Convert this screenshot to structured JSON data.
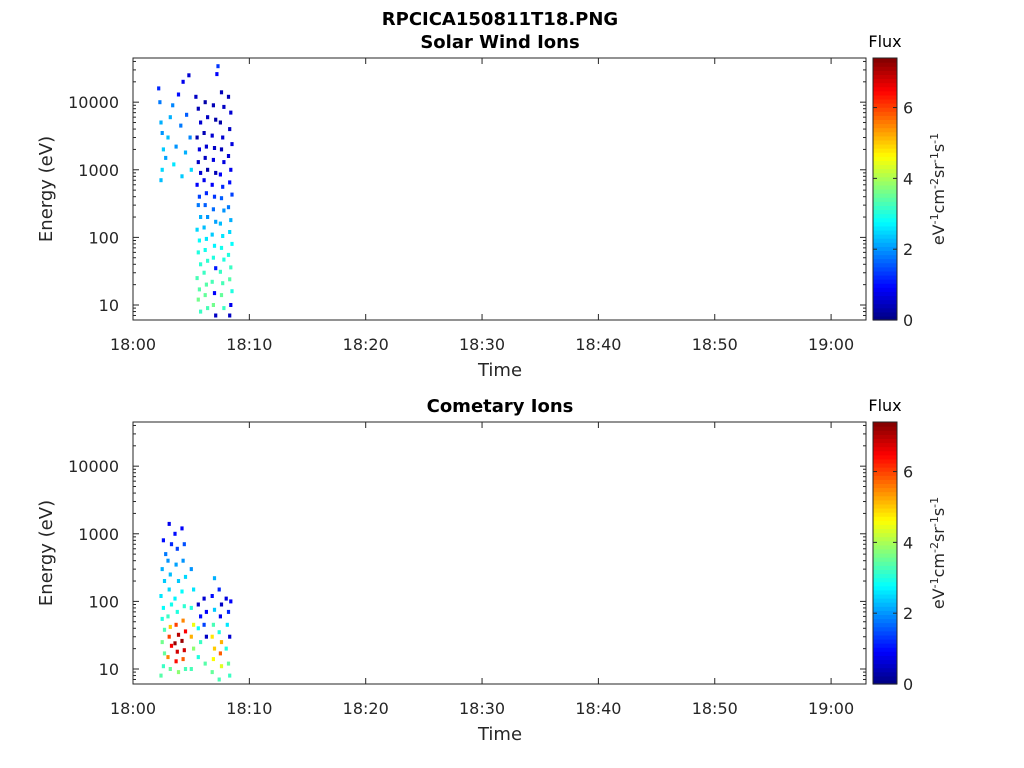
{
  "figure_title": "RPCICA150811T18.PNG",
  "chart_data": [
    {
      "type": "heatmap",
      "title": "Solar Wind Ions",
      "xlabel": "Time",
      "ylabel": "Energy (eV)",
      "x_ticks": [
        "18:00",
        "18:10",
        "18:20",
        "18:30",
        "18:40",
        "18:50",
        "19:00"
      ],
      "xlim_minutes": [
        0,
        63
      ],
      "y_ticks": [
        "10",
        "100",
        "1000",
        "10000"
      ],
      "ylim": [
        6,
        45000
      ],
      "y_scale": "log",
      "colorbar": {
        "title": "Flux",
        "label": "eV-1cm-2sr-1s-1",
        "ticks": [
          "0",
          "2",
          "4",
          "6"
        ],
        "range": [
          0,
          7.4
        ]
      },
      "cells": [
        [
          2.2,
          16000,
          1.2
        ],
        [
          2.3,
          10000,
          1.8
        ],
        [
          2.4,
          5000,
          2.2
        ],
        [
          2.5,
          3500,
          2.0
        ],
        [
          2.6,
          2000,
          2.4
        ],
        [
          2.5,
          1000,
          2.5
        ],
        [
          2.4,
          700,
          2.3
        ],
        [
          2.8,
          1500,
          2.1
        ],
        [
          3.0,
          3000,
          2.3
        ],
        [
          3.2,
          6000,
          2.2
        ],
        [
          3.4,
          9000,
          1.9
        ],
        [
          3.5,
          1200,
          2.6
        ],
        [
          3.7,
          2200,
          2.0
        ],
        [
          3.9,
          13000,
          1.0
        ],
        [
          4.1,
          4500,
          1.8
        ],
        [
          4.2,
          800,
          2.4
        ],
        [
          4.3,
          20000,
          0.8
        ],
        [
          4.5,
          1800,
          2.2
        ],
        [
          4.6,
          6500,
          1.6
        ],
        [
          4.8,
          25000,
          0.6
        ],
        [
          4.9,
          3000,
          1.9
        ],
        [
          5.0,
          1000,
          2.5
        ],
        [
          5.4,
          12000,
          0.5
        ],
        [
          5.6,
          8000,
          0.4
        ],
        [
          5.8,
          5000,
          0.6
        ],
        [
          5.5,
          3000,
          0.3
        ],
        [
          5.7,
          2000,
          0.7
        ],
        [
          5.6,
          1300,
          0.5
        ],
        [
          5.8,
          900,
          0.6
        ],
        [
          5.5,
          600,
          0.9
        ],
        [
          5.7,
          400,
          1.4
        ],
        [
          5.6,
          300,
          1.8
        ],
        [
          5.8,
          200,
          2.2
        ],
        [
          5.5,
          130,
          2.5
        ],
        [
          5.7,
          90,
          2.8
        ],
        [
          5.6,
          60,
          3.0
        ],
        [
          5.8,
          40,
          3.1
        ],
        [
          5.5,
          25,
          3.3
        ],
        [
          5.7,
          17,
          3.4
        ],
        [
          5.6,
          12,
          3.6
        ],
        [
          5.8,
          8,
          3.2
        ],
        [
          6.2,
          10000,
          0.3
        ],
        [
          6.4,
          6000,
          0.5
        ],
        [
          6.1,
          3500,
          0.4
        ],
        [
          6.3,
          2200,
          0.6
        ],
        [
          6.2,
          1500,
          0.5
        ],
        [
          6.4,
          1000,
          0.3
        ],
        [
          6.1,
          700,
          0.8
        ],
        [
          6.3,
          450,
          1.2
        ],
        [
          6.2,
          300,
          1.6
        ],
        [
          6.4,
          200,
          2.0
        ],
        [
          6.1,
          140,
          2.3
        ],
        [
          6.3,
          95,
          2.6
        ],
        [
          6.2,
          65,
          2.9
        ],
        [
          6.4,
          45,
          3.1
        ],
        [
          6.1,
          30,
          3.2
        ],
        [
          6.3,
          20,
          3.4
        ],
        [
          6.2,
          14,
          3.5
        ],
        [
          6.4,
          9,
          3.3
        ],
        [
          6.9,
          9000,
          0.4
        ],
        [
          7.1,
          5500,
          0.3
        ],
        [
          6.8,
          3200,
          0.6
        ],
        [
          7.0,
          2100,
          0.5
        ],
        [
          6.9,
          1400,
          0.7
        ],
        [
          7.1,
          900,
          0.4
        ],
        [
          6.8,
          600,
          0.9
        ],
        [
          7.0,
          400,
          1.3
        ],
        [
          6.9,
          260,
          1.7
        ],
        [
          7.1,
          170,
          2.1
        ],
        [
          6.8,
          110,
          2.4
        ],
        [
          7.0,
          75,
          2.7
        ],
        [
          6.9,
          50,
          3.0
        ],
        [
          7.1,
          35,
          1.1
        ],
        [
          6.8,
          22,
          3.3
        ],
        [
          7.0,
          15,
          0.9
        ],
        [
          6.9,
          10,
          3.6
        ],
        [
          7.1,
          7,
          0.5
        ],
        [
          7.2,
          26000,
          0.9
        ],
        [
          7.3,
          34000,
          1.3
        ],
        [
          7.6,
          14000,
          0.4
        ],
        [
          7.8,
          8500,
          0.5
        ],
        [
          7.5,
          5000,
          0.3
        ],
        [
          7.7,
          3000,
          0.6
        ],
        [
          7.6,
          2000,
          0.4
        ],
        [
          7.8,
          1300,
          0.7
        ],
        [
          7.5,
          850,
          0.9
        ],
        [
          7.7,
          560,
          1.2
        ],
        [
          7.6,
          380,
          1.6
        ],
        [
          7.8,
          250,
          2.0
        ],
        [
          7.5,
          160,
          2.3
        ],
        [
          7.7,
          105,
          2.6
        ],
        [
          7.6,
          70,
          2.9
        ],
        [
          7.8,
          47,
          3.0
        ],
        [
          7.5,
          31,
          3.2
        ],
        [
          7.7,
          21,
          3.3
        ],
        [
          7.6,
          14,
          3.5
        ],
        [
          7.8,
          9,
          3.2
        ],
        [
          8.2,
          12000,
          0.4
        ],
        [
          8.4,
          7000,
          0.6
        ],
        [
          8.3,
          4000,
          0.5
        ],
        [
          8.5,
          2400,
          0.7
        ],
        [
          8.2,
          1600,
          0.6
        ],
        [
          8.4,
          1000,
          0.8
        ],
        [
          8.3,
          650,
          1.0
        ],
        [
          8.5,
          430,
          1.4
        ],
        [
          8.2,
          280,
          1.8
        ],
        [
          8.4,
          180,
          2.2
        ],
        [
          8.3,
          120,
          2.5
        ],
        [
          8.5,
          80,
          2.8
        ],
        [
          8.2,
          55,
          3.0
        ],
        [
          8.4,
          36,
          3.2
        ],
        [
          8.3,
          24,
          3.4
        ],
        [
          8.5,
          16,
          3.0
        ],
        [
          8.4,
          10,
          0.8
        ],
        [
          8.3,
          7,
          0.5
        ]
      ]
    },
    {
      "type": "heatmap",
      "title": "Cometary Ions",
      "xlabel": "Time",
      "ylabel": "Energy (eV)",
      "x_ticks": [
        "18:00",
        "18:10",
        "18:20",
        "18:30",
        "18:40",
        "18:50",
        "19:00"
      ],
      "xlim_minutes": [
        0,
        63
      ],
      "y_ticks": [
        "10",
        "100",
        "1000",
        "10000"
      ],
      "ylim": [
        6,
        45000
      ],
      "y_scale": "log",
      "colorbar": {
        "title": "Flux",
        "label": "eV-1cm-2sr-1s-1",
        "ticks": [
          "0",
          "2",
          "4",
          "6"
        ],
        "range": [
          0,
          7.4
        ]
      },
      "cells": [
        [
          2.6,
          800,
          1.0
        ],
        [
          2.8,
          500,
          1.8
        ],
        [
          2.5,
          300,
          2.2
        ],
        [
          2.7,
          200,
          2.4
        ],
        [
          2.4,
          120,
          2.6
        ],
        [
          2.6,
          80,
          2.8
        ],
        [
          2.5,
          55,
          3.0
        ],
        [
          2.7,
          38,
          3.3
        ],
        [
          2.5,
          25,
          3.6
        ],
        [
          2.7,
          17,
          3.5
        ],
        [
          2.6,
          11,
          3.2
        ],
        [
          2.4,
          8,
          3.4
        ],
        [
          3.1,
          1400,
          0.8
        ],
        [
          3.3,
          700,
          1.2
        ],
        [
          3.0,
          400,
          2.0
        ],
        [
          3.2,
          250,
          2.3
        ],
        [
          3.1,
          150,
          2.5
        ],
        [
          3.3,
          90,
          2.9
        ],
        [
          3.0,
          60,
          3.2
        ],
        [
          3.2,
          42,
          5.0
        ],
        [
          3.1,
          30,
          6.0
        ],
        [
          3.3,
          22,
          6.5
        ],
        [
          3.0,
          15,
          5.5
        ],
        [
          3.2,
          10,
          3.5
        ],
        [
          3.6,
          1000,
          1.0
        ],
        [
          3.8,
          600,
          1.4
        ],
        [
          3.7,
          350,
          2.1
        ],
        [
          3.9,
          200,
          2.4
        ],
        [
          3.6,
          110,
          2.7
        ],
        [
          3.8,
          70,
          3.0
        ],
        [
          3.7,
          45,
          6.0
        ],
        [
          3.9,
          32,
          7.0
        ],
        [
          3.6,
          24,
          7.2
        ],
        [
          3.8,
          18,
          6.8
        ],
        [
          3.7,
          13,
          6.4
        ],
        [
          3.9,
          9,
          3.8
        ],
        [
          4.2,
          1200,
          0.9
        ],
        [
          4.4,
          700,
          1.5
        ],
        [
          4.3,
          400,
          2.0
        ],
        [
          4.5,
          230,
          2.5
        ],
        [
          4.2,
          140,
          2.8
        ],
        [
          4.4,
          85,
          3.1
        ],
        [
          4.3,
          52,
          5.5
        ],
        [
          4.5,
          36,
          6.5
        ],
        [
          4.2,
          26,
          7.2
        ],
        [
          4.4,
          19,
          6.8
        ],
        [
          4.3,
          14,
          5.8
        ],
        [
          4.5,
          10,
          3.3
        ],
        [
          5.0,
          300,
          2.0
        ],
        [
          5.2,
          150,
          2.6
        ],
        [
          5.0,
          80,
          3.0
        ],
        [
          5.2,
          45,
          4.5
        ],
        [
          5.0,
          30,
          5.2
        ],
        [
          5.2,
          20,
          3.8
        ],
        [
          5.0,
          10,
          3.3
        ],
        [
          5.6,
          90,
          0.5
        ],
        [
          5.8,
          60,
          1.0
        ],
        [
          5.6,
          40,
          2.8
        ],
        [
          5.8,
          25,
          3.2
        ],
        [
          5.6,
          15,
          3.0
        ],
        [
          6.1,
          110,
          0.6
        ],
        [
          6.3,
          70,
          0.9
        ],
        [
          6.1,
          45,
          1.4
        ],
        [
          6.3,
          30,
          0.5
        ],
        [
          6.2,
          12,
          3.4
        ],
        [
          6.8,
          120,
          1.0
        ],
        [
          7.0,
          75,
          2.4
        ],
        [
          6.9,
          45,
          3.3
        ],
        [
          6.8,
          30,
          4.8
        ],
        [
          7.0,
          20,
          5.0
        ],
        [
          6.9,
          14,
          4.6
        ],
        [
          6.8,
          9,
          3.5
        ],
        [
          7.0,
          220,
          2.2
        ],
        [
          7.4,
          150,
          1.2
        ],
        [
          7.6,
          90,
          0.5
        ],
        [
          7.5,
          60,
          0.8
        ],
        [
          7.4,
          35,
          3.0
        ],
        [
          7.6,
          25,
          5.2
        ],
        [
          7.5,
          17,
          5.8
        ],
        [
          7.6,
          11,
          4.4
        ],
        [
          7.4,
          7,
          3.3
        ],
        [
          8.0,
          110,
          0.7
        ],
        [
          8.2,
          70,
          1.2
        ],
        [
          8.1,
          45,
          2.6
        ],
        [
          8.3,
          30,
          0.6
        ],
        [
          8.0,
          20,
          3.0
        ],
        [
          8.2,
          12,
          3.5
        ],
        [
          8.4,
          100,
          0.9
        ],
        [
          8.3,
          8,
          3.2
        ]
      ]
    }
  ]
}
